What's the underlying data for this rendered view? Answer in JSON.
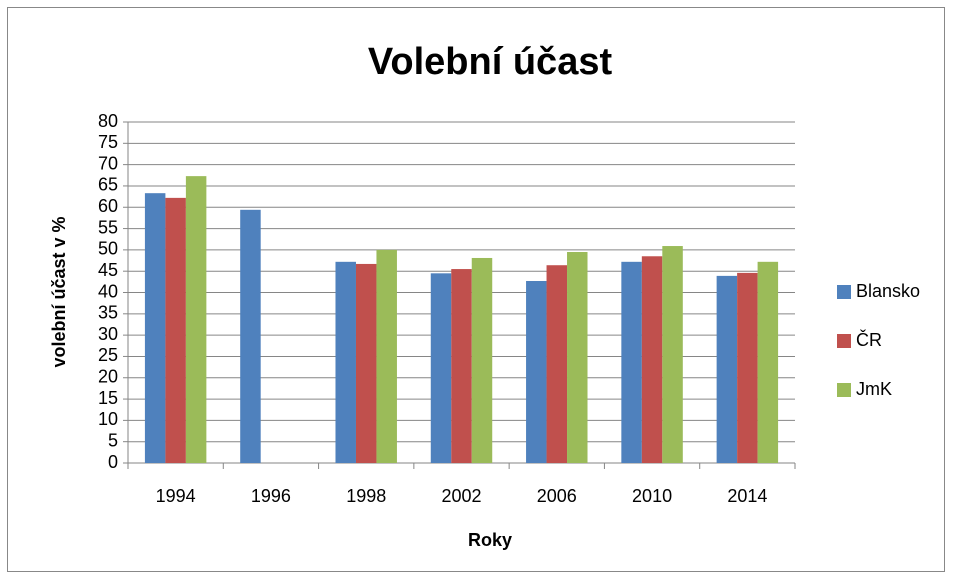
{
  "chart_data": {
    "type": "bar",
    "title": "Volební účast",
    "categories": [
      "1994",
      "1996",
      "1998",
      "2002",
      "2006",
      "2010",
      "2014"
    ],
    "series": [
      {
        "name": "Blansko",
        "color": "#4f81bd",
        "values": [
          63.3,
          59.4,
          47.2,
          44.5,
          42.7,
          47.2,
          43.9
        ]
      },
      {
        "name": "ČR",
        "color": "#c0504d",
        "values": [
          62.2,
          null,
          46.7,
          45.5,
          46.4,
          48.5,
          44.6
        ]
      },
      {
        "name": "JmK",
        "color": "#9bbb59",
        "values": [
          67.3,
          null,
          50,
          48.1,
          49.5,
          50.9,
          47.2
        ]
      }
    ],
    "xlabel": "Roky",
    "ylabel": "volební účast v %",
    "ylim": [
      0,
      80
    ],
    "yticks": [
      0,
      5,
      10,
      15,
      20,
      25,
      30,
      35,
      40,
      45,
      50,
      55,
      60,
      65,
      70,
      75,
      80
    ],
    "grid": true,
    "legend": "right"
  }
}
